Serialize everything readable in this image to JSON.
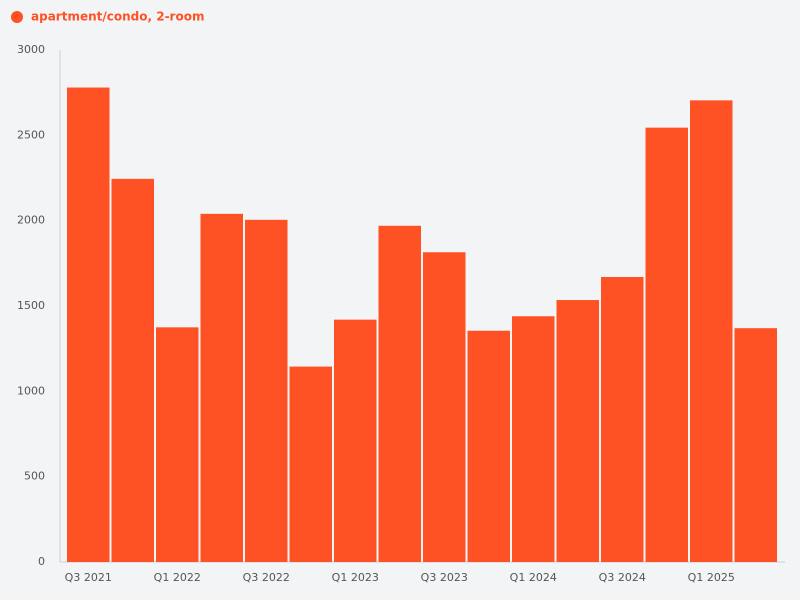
{
  "chart_data": {
    "type": "bar",
    "categories": [
      "Q3 2021",
      null,
      "Q1 2022",
      null,
      "Q3 2022",
      null,
      "Q1 2023",
      null,
      "Q3 2023",
      null,
      "Q1 2024",
      null,
      "Q3 2024",
      null,
      "Q1 2025",
      null
    ],
    "series": [
      {
        "name": "apartment/condo, 2-room",
        "color": "#ff5224",
        "values": [
          2780,
          2245,
          1375,
          2040,
          2005,
          1145,
          1420,
          1970,
          1815,
          1355,
          1440,
          1535,
          1670,
          2545,
          2705,
          1370
        ]
      }
    ],
    "ylim": [
      0,
      3000
    ],
    "yticks": [
      0,
      500,
      1000,
      1500,
      2000,
      2500,
      3000
    ],
    "grid": false
  }
}
